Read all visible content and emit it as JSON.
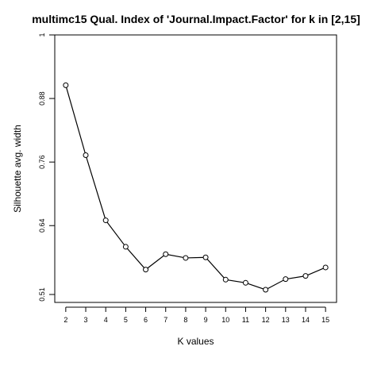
{
  "chart_data": {
    "type": "line",
    "title": "multimc15 Qual. Index of 'Journal.Impact.Factor' for k in [2,15]",
    "xlabel": "K values",
    "ylabel": "Silhouette avg. width",
    "x": [
      2,
      3,
      4,
      5,
      6,
      7,
      8,
      9,
      10,
      11,
      12,
      13,
      14,
      15
    ],
    "values": [
      0.905,
      0.773,
      0.65,
      0.6,
      0.557,
      0.586,
      0.579,
      0.58,
      0.538,
      0.532,
      0.519,
      0.539,
      0.545,
      0.561
    ],
    "xlim": [
      1.45,
      15.55
    ],
    "ylim": [
      0.495,
      1.0
    ],
    "x_ticks": [
      "2",
      "3",
      "4",
      "5",
      "6",
      "7",
      "8",
      "9",
      "10",
      "11",
      "12",
      "13",
      "14",
      "15"
    ],
    "y_ticks": [
      {
        "value": 0.51,
        "label": "0.51"
      },
      {
        "value": 0.64,
        "label": "0.64"
      },
      {
        "value": 0.76,
        "label": "0.76"
      },
      {
        "value": 0.88,
        "label": "0.88"
      },
      {
        "value": 1.0,
        "label": "1"
      }
    ],
    "grid": false,
    "legend": "none",
    "markers": "open-circle",
    "line_color": "#000000"
  }
}
